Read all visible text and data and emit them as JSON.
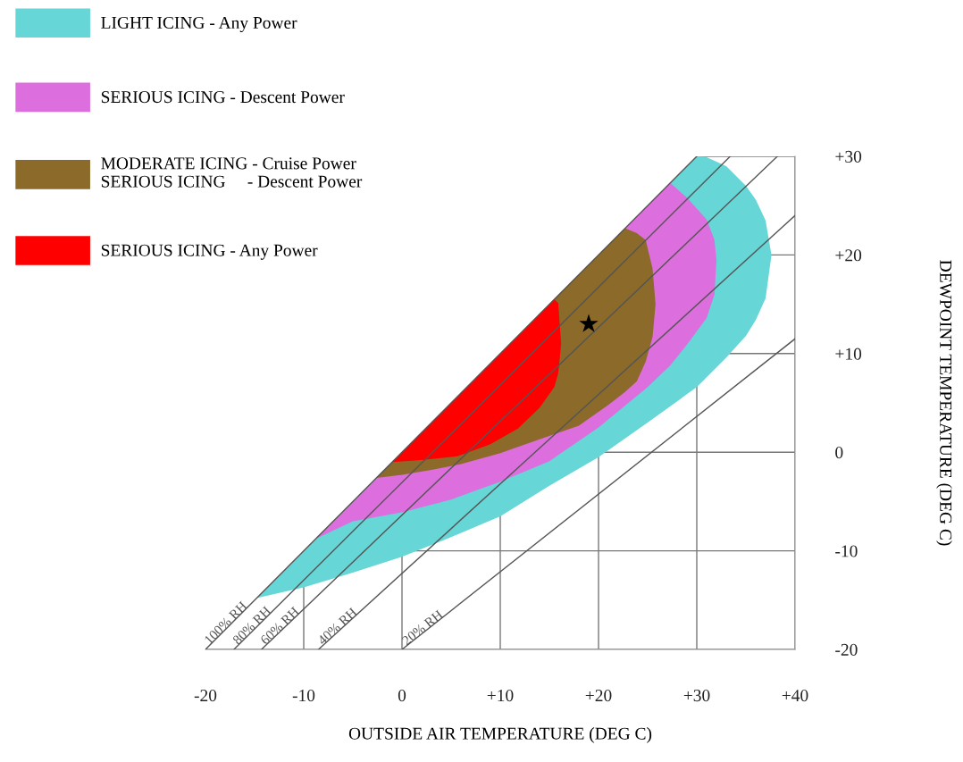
{
  "chart_data": {
    "type": "area",
    "xlabel": "OUTSIDE AIR TEMPERATURE (DEG C)",
    "ylabel": "DEWPOINT TEMPERATURE (DEG C)",
    "xlim": [
      -20,
      40
    ],
    "ylim": [
      -20,
      30
    ],
    "xticks": [
      -20,
      -10,
      0,
      {
        "value": 10,
        "label": "+10"
      },
      {
        "value": 20,
        "label": "+20"
      },
      {
        "value": 30,
        "label": "+30"
      },
      {
        "value": 40,
        "label": "+40"
      }
    ],
    "yticks": [
      -20,
      -10,
      0,
      {
        "value": 10,
        "label": "+10"
      },
      {
        "value": 20,
        "label": "+20"
      },
      {
        "value": 30,
        "label": "+30"
      }
    ],
    "grid": true,
    "legend": "top left",
    "series": [
      {
        "name": "LIGHT ICING - Any Power",
        "color": "#66d6d6",
        "x": [
          -14.8,
          -10,
          -5,
          0,
          5,
          10,
          15,
          20,
          25,
          30,
          31,
          33,
          35,
          36,
          37,
          37.6,
          37,
          36,
          35,
          33,
          31,
          30,
          25,
          20,
          15,
          10,
          5,
          0,
          -5,
          -10
        ],
        "values": [
          -14.8,
          -13.7,
          -12.2,
          -10.6,
          -8.6,
          -6.5,
          -3.4,
          -0.5,
          3,
          6.6,
          7.6,
          9.6,
          11.8,
          13.4,
          15.6,
          20,
          23.5,
          25.6,
          27,
          29,
          29.9,
          30,
          25,
          20,
          15,
          10,
          5,
          0,
          -5,
          -10
        ]
      },
      {
        "name": "SERIOUS ICING - Descent Power",
        "color": "#dd6edd",
        "x": [
          -8.8,
          -5,
          0,
          5,
          10,
          15,
          20,
          25,
          27.3,
          29,
          31,
          31.8,
          32,
          31.8,
          31,
          29,
          27.3,
          25,
          20,
          15,
          10,
          5,
          0,
          -5
        ],
        "values": [
          -8.8,
          -7.0,
          -6.1,
          -4.8,
          -3.0,
          -0.9,
          2.5,
          6.6,
          8.8,
          10.9,
          13.6,
          16,
          19.5,
          21.5,
          23.6,
          25.8,
          27.3,
          25,
          20,
          15,
          10,
          5,
          0,
          -5
        ]
      },
      {
        "name": "MODERATE ICING - Cruise Power\nSERIOUS ICING     - Descent Power",
        "color": "#8b6a2a",
        "x": [
          -2.6,
          0,
          3,
          6,
          10,
          14,
          18,
          21,
          22.7,
          23.9,
          24.8,
          25.5,
          25.8,
          25.5,
          24.8,
          23.9,
          22.7,
          21,
          18,
          14,
          10,
          6,
          3,
          0
        ],
        "values": [
          -2.6,
          -2.3,
          -1.8,
          -1.2,
          -0.1,
          1.3,
          2.7,
          4.8,
          6.1,
          7.2,
          9.2,
          11.7,
          15,
          18.6,
          21.5,
          22.2,
          22.7,
          21,
          18,
          14,
          10,
          6,
          3,
          0
        ]
      },
      {
        "name": "SERIOUS ICING - Any Power",
        "color": "#ff0000",
        "x": [
          -1,
          2,
          5.7,
          9,
          11.8,
          14,
          15.5,
          15.9,
          16.2,
          15.9,
          15.5,
          14,
          11.8,
          9,
          5.7,
          2
        ],
        "values": [
          -1,
          -0.8,
          -0.4,
          0.8,
          2.4,
          4.5,
          6.6,
          8,
          11,
          15.1,
          15.5,
          14,
          11.8,
          9,
          5.7,
          2
        ]
      },
      {
        "type": "line",
        "name": "100% RH",
        "color": "#555555",
        "x": [
          -20,
          30
        ],
        "values": [
          -20,
          30
        ]
      },
      {
        "type": "line",
        "name": "80% RH",
        "color": "#555555",
        "x": [
          -17.1,
          33.4
        ],
        "values": [
          -20,
          30
        ]
      },
      {
        "type": "line",
        "name": "60% RH",
        "color": "#555555",
        "x": [
          -14.3,
          38.2
        ],
        "values": [
          -20,
          30
        ]
      },
      {
        "type": "line",
        "name": "40% RH",
        "color": "#555555",
        "x": [
          -8.5,
          40
        ],
        "values": [
          -20,
          24
        ]
      },
      {
        "type": "line",
        "name": "20% RH",
        "color": "#555555",
        "x": [
          0,
          40
        ],
        "values": [
          -20,
          11.5
        ]
      },
      {
        "type": "scatter",
        "color": "#000000",
        "marker": "star",
        "x": [
          19
        ],
        "values": [
          13
        ]
      }
    ]
  }
}
